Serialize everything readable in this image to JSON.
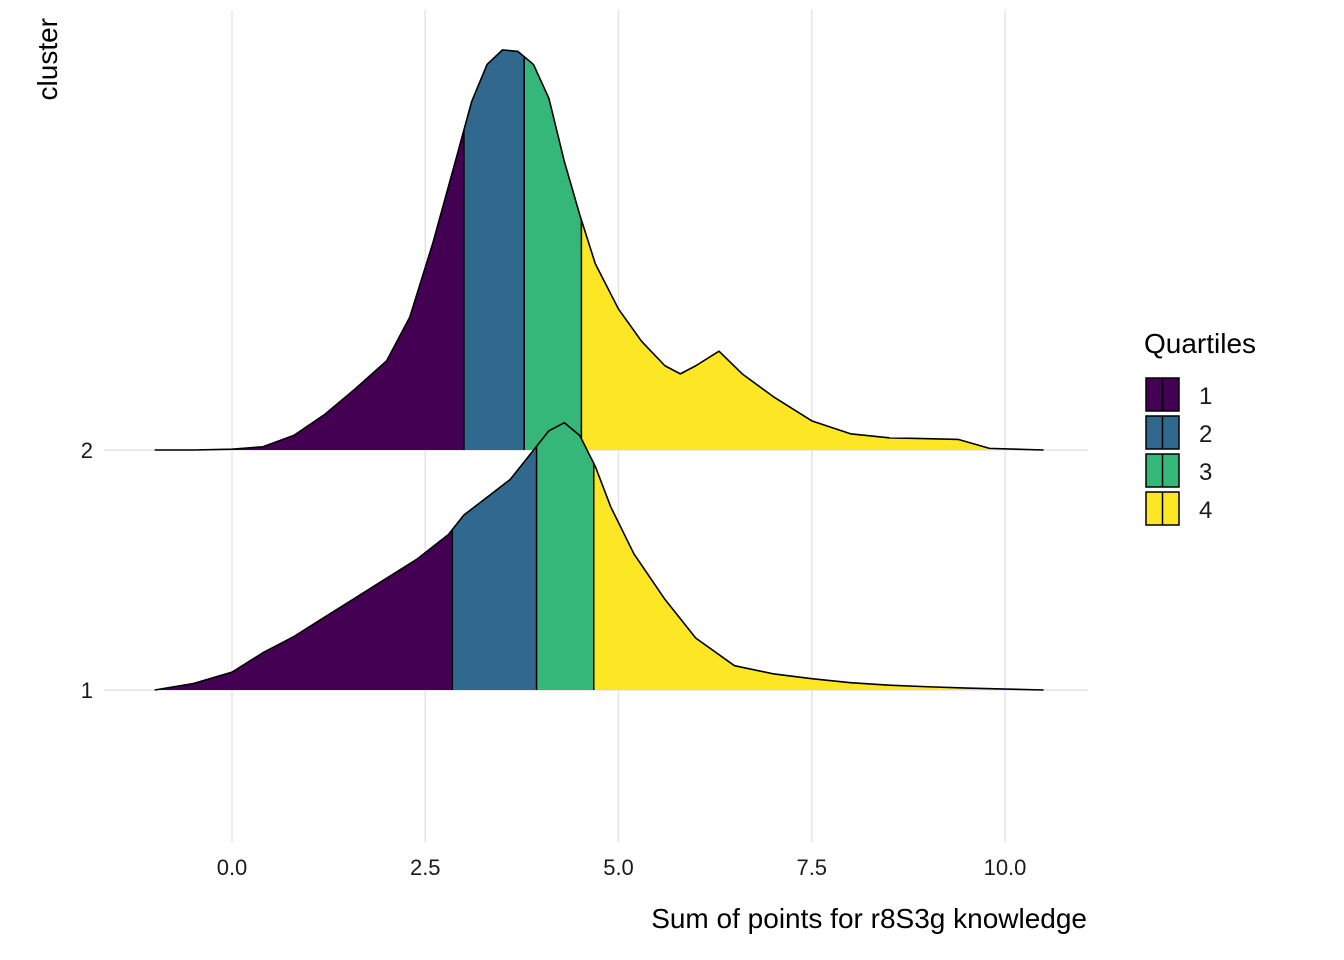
{
  "chart_data": {
    "type": "ridgeline-density",
    "title": "",
    "xlabel": "Sum of points for r8S3g knowledge",
    "ylabel": "cluster",
    "xlim": [
      -1.0,
      10.5
    ],
    "x_ticks": [
      0.0,
      2.5,
      5.0,
      7.5,
      10.0
    ],
    "x_tick_labels": [
      "0.0",
      "2.5",
      "5.0",
      "7.5",
      "10.0"
    ],
    "grid": "vertical major gridlines",
    "legend": {
      "title": "Quartiles",
      "position": "right",
      "entries": [
        "1",
        "2",
        "3",
        "4"
      ]
    },
    "quartile_colors": [
      "#440154",
      "#31688E",
      "#35B779",
      "#FDE725"
    ],
    "series": [
      {
        "name": "1",
        "quartile_breaks": [
          2.85,
          3.94,
          4.68
        ],
        "x": [
          -1.0,
          -0.5,
          0.0,
          0.4,
          0.8,
          1.2,
          1.6,
          2.0,
          2.4,
          2.8,
          3.0,
          3.3,
          3.6,
          3.9,
          4.1,
          4.3,
          4.5,
          4.7,
          4.9,
          5.2,
          5.6,
          6.0,
          6.5,
          7.0,
          7.5,
          8.0,
          8.5,
          9.0,
          9.5,
          10.0,
          10.5
        ],
        "density": [
          0.0,
          0.04,
          0.11,
          0.23,
          0.33,
          0.45,
          0.57,
          0.69,
          0.81,
          0.96,
          1.08,
          1.19,
          1.3,
          1.48,
          1.6,
          1.65,
          1.57,
          1.38,
          1.13,
          0.84,
          0.56,
          0.32,
          0.15,
          0.1,
          0.07,
          0.045,
          0.03,
          0.02,
          0.012,
          0.006,
          0.0
        ]
      },
      {
        "name": "2",
        "quartile_breaks": [
          3.0,
          3.78,
          4.52
        ],
        "x": [
          -1.0,
          -0.5,
          0.0,
          0.4,
          0.8,
          1.2,
          1.6,
          2.0,
          2.3,
          2.6,
          2.9,
          3.1,
          3.3,
          3.5,
          3.7,
          3.9,
          4.1,
          4.3,
          4.5,
          4.7,
          5.0,
          5.3,
          5.6,
          5.8,
          6.0,
          6.3,
          6.6,
          7.0,
          7.5,
          8.0,
          8.5,
          9.0,
          9.4,
          9.8,
          10.5
        ],
        "density": [
          0.0,
          0.0,
          0.005,
          0.02,
          0.09,
          0.22,
          0.38,
          0.55,
          0.82,
          1.28,
          1.8,
          2.15,
          2.38,
          2.47,
          2.46,
          2.38,
          2.17,
          1.78,
          1.45,
          1.15,
          0.87,
          0.67,
          0.52,
          0.47,
          0.52,
          0.61,
          0.47,
          0.33,
          0.18,
          0.1,
          0.075,
          0.07,
          0.065,
          0.01,
          0.0
        ]
      }
    ]
  }
}
